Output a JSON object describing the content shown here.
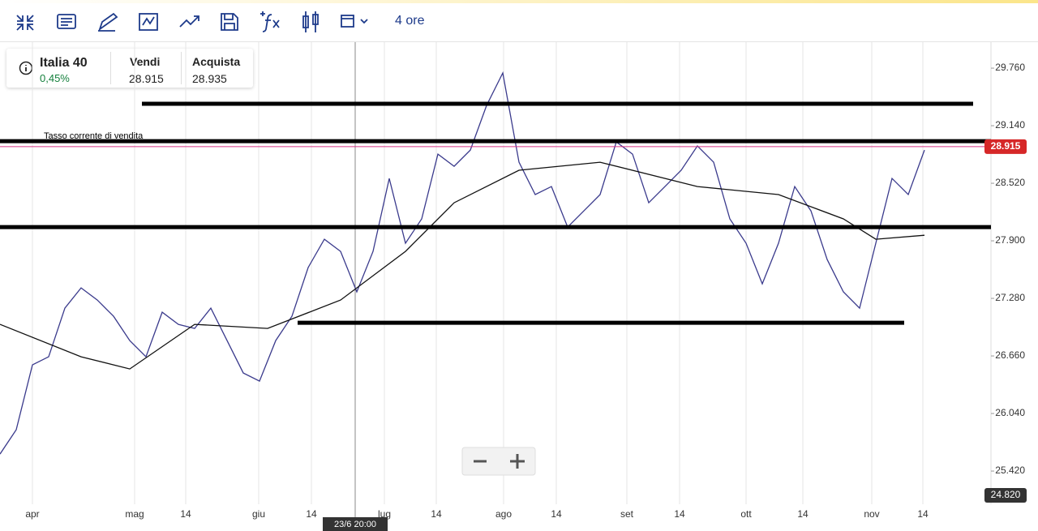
{
  "toolbar": {
    "timeframe": "4 ore"
  },
  "instrument": {
    "name": "Italia 40",
    "change": "0,45%",
    "sell_label": "Vendi",
    "sell": "28.915",
    "buy_label": "Acquista",
    "buy": "28.935"
  },
  "chart_data": {
    "type": "line",
    "annotation": "Tasso corrente di vendita",
    "crosshair_label": "23/6 20:00",
    "current_price": {
      "value": 28915,
      "label": "28.915"
    },
    "low_label": "24.820",
    "ylim": [
      25080,
      30040
    ],
    "yticks": [
      {
        "value": 25420,
        "label": "25.420"
      },
      {
        "value": 26040,
        "label": "26.040"
      },
      {
        "value": 26660,
        "label": "26.660"
      },
      {
        "value": 27280,
        "label": "27.280"
      },
      {
        "value": 27900,
        "label": "27.900"
      },
      {
        "value": 28520,
        "label": "28.520"
      },
      {
        "value": 29140,
        "label": "29.140"
      },
      {
        "value": 29760,
        "label": "29.760"
      }
    ],
    "xlim": [
      0,
      122.2
    ],
    "xticks": [
      {
        "value": 4,
        "label": "apr"
      },
      {
        "value": 16.6,
        "label": "mag"
      },
      {
        "value": 22.9,
        "label": "14"
      },
      {
        "value": 31.9,
        "label": "giu"
      },
      {
        "value": 38.4,
        "label": "14"
      },
      {
        "value": 47.4,
        "label": "lug"
      },
      {
        "value": 53.8,
        "label": "14"
      },
      {
        "value": 62.1,
        "label": "ago"
      },
      {
        "value": 68.6,
        "label": "14"
      },
      {
        "value": 77.3,
        "label": "set"
      },
      {
        "value": 83.8,
        "label": "14"
      },
      {
        "value": 92,
        "label": "ott"
      },
      {
        "value": 99,
        "label": "14"
      },
      {
        "value": 107.5,
        "label": "nov"
      },
      {
        "value": 113.8,
        "label": "14"
      }
    ],
    "series": [
      {
        "color": "#3a3a8c",
        "x": [
          0,
          2,
          4,
          6,
          8,
          10,
          12,
          14,
          16,
          18,
          20,
          22,
          24,
          26,
          28,
          30,
          32,
          34,
          36,
          38,
          40,
          42,
          44,
          46,
          48,
          50,
          52,
          54,
          56,
          58,
          60,
          62,
          64,
          66,
          68,
          70,
          72,
          74,
          76,
          78,
          80,
          82,
          84,
          86,
          88,
          90,
          92,
          94,
          96,
          98,
          100,
          102,
          104,
          106,
          108,
          110,
          112,
          114
        ],
        "values": [
          25603,
          25865,
          26564,
          26651,
          27175,
          27393,
          27262,
          27088,
          26826,
          26651,
          27131,
          27000,
          26957,
          27175,
          26826,
          26476,
          26389,
          26826,
          27088,
          27612,
          27917,
          27786,
          27350,
          27786,
          28572,
          27874,
          28136,
          28834,
          28703,
          28878,
          29358,
          29708,
          28747,
          28398,
          28485,
          28048,
          28223,
          28398,
          28965,
          28834,
          28310,
          28485,
          28660,
          28922,
          28747,
          28136,
          27874,
          27437,
          27874,
          28485,
          28223,
          27699,
          27350,
          27175,
          27874,
          28572,
          28398,
          28878
        ]
      },
      {
        "color": "#111111",
        "x": [
          0,
          10,
          16,
          24,
          33,
          42,
          50,
          56,
          64,
          74,
          86,
          96,
          104,
          108,
          114
        ],
        "values": [
          27000,
          26651,
          26520,
          27000,
          26957,
          27262,
          27786,
          28310,
          28660,
          28747,
          28485,
          28398,
          28136,
          27917,
          27960
        ]
      }
    ],
    "drawn_levels": [
      {
        "value": 29376,
        "from": 17.5,
        "to": 120
      },
      {
        "value": 28974,
        "from": 0,
        "to": 122.2
      },
      {
        "value": 28048,
        "from": 0,
        "to": 122.2
      },
      {
        "value": 27018,
        "from": 36.7,
        "to": 111.5
      }
    ]
  }
}
